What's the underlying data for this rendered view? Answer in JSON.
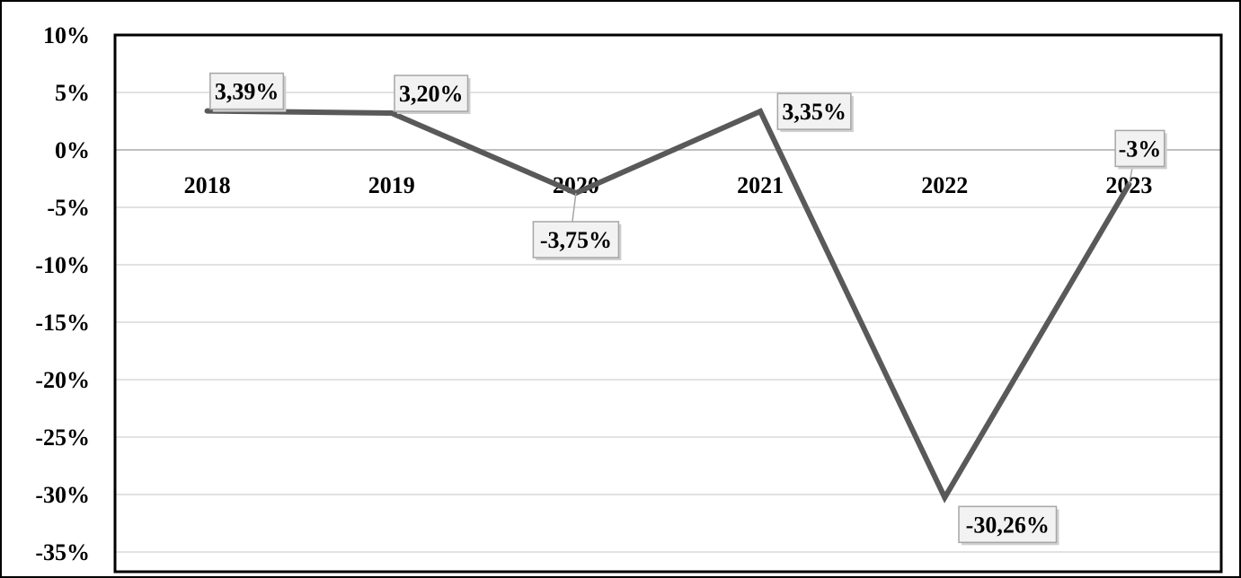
{
  "chart_data": {
    "type": "line",
    "title": "",
    "xlabel": "",
    "ylabel": "",
    "categories": [
      "2018",
      "2019",
      "2020",
      "2021",
      "2022",
      "2023"
    ],
    "series": [
      {
        "values": [
          3.39,
          3.2,
          -3.75,
          3.35,
          -30.26,
          -3
        ]
      }
    ],
    "data_labels": [
      "3,39%",
      "3,20%",
      "-3,75%",
      "3,35%",
      "-30,26%",
      "-3%"
    ],
    "ylim": [
      -35,
      10
    ],
    "yticks": [
      10,
      5,
      0,
      -5,
      -10,
      -15,
      -20,
      -25,
      -30,
      -35
    ],
    "ytick_labels": [
      "10%",
      "5%",
      "0%",
      "-5%",
      "-10%",
      "-15%",
      "-20%",
      "-25%",
      "-30%",
      "-35%"
    ],
    "grid": true,
    "legend": "none",
    "colors": {
      "line": "#595959",
      "grid": "#d9d9d9",
      "axis": "#bfbfbf",
      "frame": "#000000",
      "label_box": "#f2f2f2",
      "label_border": "#a6a6a6"
    }
  }
}
